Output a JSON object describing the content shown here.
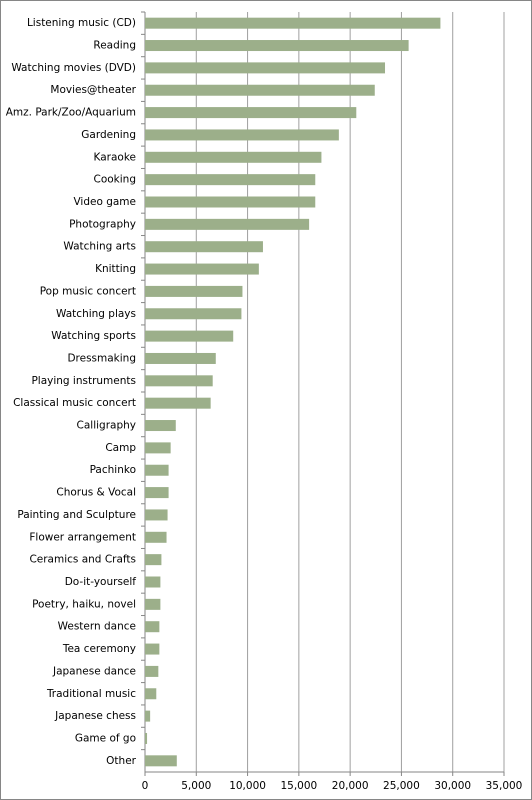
{
  "chart_data": {
    "type": "hbar",
    "categories": [
      "Listening music (CD)",
      "Reading",
      "Watching movies (DVD)",
      "Movies@theater",
      "Amz. Park/Zoo/Aquarium",
      "Gardening",
      "Karaoke",
      "Cooking",
      "Video game",
      "Photography",
      "Watching arts",
      "Knitting",
      "Pop music concert",
      "Watching plays",
      "Watching sports",
      "Dressmaking",
      "Playing instruments",
      "Classical music concert",
      "Calligraphy",
      "Camp",
      "Pachinko",
      "Chorus & Vocal",
      "Painting and Sculpture",
      "Flower arrangement",
      "Ceramics and Crafts",
      "Do-it-yourself",
      "Poetry, haiku, novel",
      "Western dance",
      "Tea ceremony",
      "Japanese dance",
      "Traditional music",
      "Japanese chess",
      "Game of go",
      "Other"
    ],
    "values": [
      28800,
      25700,
      23400,
      22400,
      20600,
      18900,
      17200,
      16600,
      16600,
      16000,
      11500,
      11100,
      9500,
      9400,
      8600,
      6900,
      6600,
      6400,
      3000,
      2500,
      2300,
      2300,
      2200,
      2100,
      1600,
      1500,
      1500,
      1400,
      1400,
      1300,
      1100,
      500,
      200,
      3100
    ],
    "color": "#9caf8a",
    "xlim": [
      0,
      35000
    ],
    "xticks": [
      0,
      {
        "value": 5000,
        "label": "5,000"
      },
      {
        "value": 10000,
        "label": "10,000"
      },
      {
        "value": 15000,
        "label": "15,000"
      },
      {
        "value": 20000,
        "label": "20,000"
      },
      {
        "value": 25000,
        "label": "25,000"
      },
      {
        "value": 30000,
        "label": "30,000"
      },
      {
        "value": 35000,
        "label": "35,000"
      }
    ],
    "grid": true
  }
}
